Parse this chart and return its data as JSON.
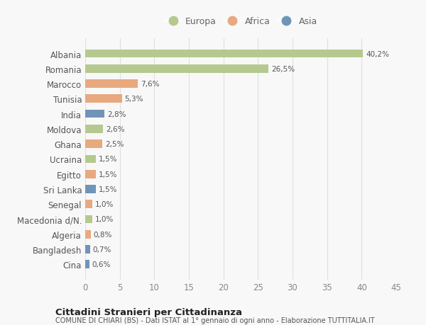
{
  "countries": [
    "Albania",
    "Romania",
    "Marocco",
    "Tunisia",
    "India",
    "Moldova",
    "Ghana",
    "Ucraina",
    "Egitto",
    "Sri Lanka",
    "Senegal",
    "Macedonia d/N.",
    "Algeria",
    "Bangladesh",
    "Cina"
  ],
  "values": [
    40.2,
    26.5,
    7.6,
    5.3,
    2.8,
    2.6,
    2.5,
    1.5,
    1.5,
    1.5,
    1.0,
    1.0,
    0.8,
    0.7,
    0.6
  ],
  "labels": [
    "40,2%",
    "26,5%",
    "7,6%",
    "5,3%",
    "2,8%",
    "2,6%",
    "2,5%",
    "1,5%",
    "1,5%",
    "1,5%",
    "1,0%",
    "1,0%",
    "0,8%",
    "0,7%",
    "0,6%"
  ],
  "continent": [
    "Europa",
    "Europa",
    "Africa",
    "Africa",
    "Asia",
    "Europa",
    "Africa",
    "Europa",
    "Africa",
    "Asia",
    "Africa",
    "Europa",
    "Africa",
    "Asia",
    "Asia"
  ],
  "colors": {
    "Europa": "#b5c98e",
    "Africa": "#e8a97e",
    "Asia": "#7094b8"
  },
  "legend_order": [
    "Europa",
    "Africa",
    "Asia"
  ],
  "title1": "Cittadini Stranieri per Cittadinanza",
  "title2": "COMUNE DI CHIARI (BS) - Dati ISTAT al 1° gennaio di ogni anno - Elaborazione TUTTITALIA.IT",
  "xlim": [
    0,
    45
  ],
  "xticks": [
    0,
    5,
    10,
    15,
    20,
    25,
    30,
    35,
    40,
    45
  ],
  "background_color": "#f8f8f8",
  "grid_color": "#e0e0e0",
  "bar_height": 0.55
}
